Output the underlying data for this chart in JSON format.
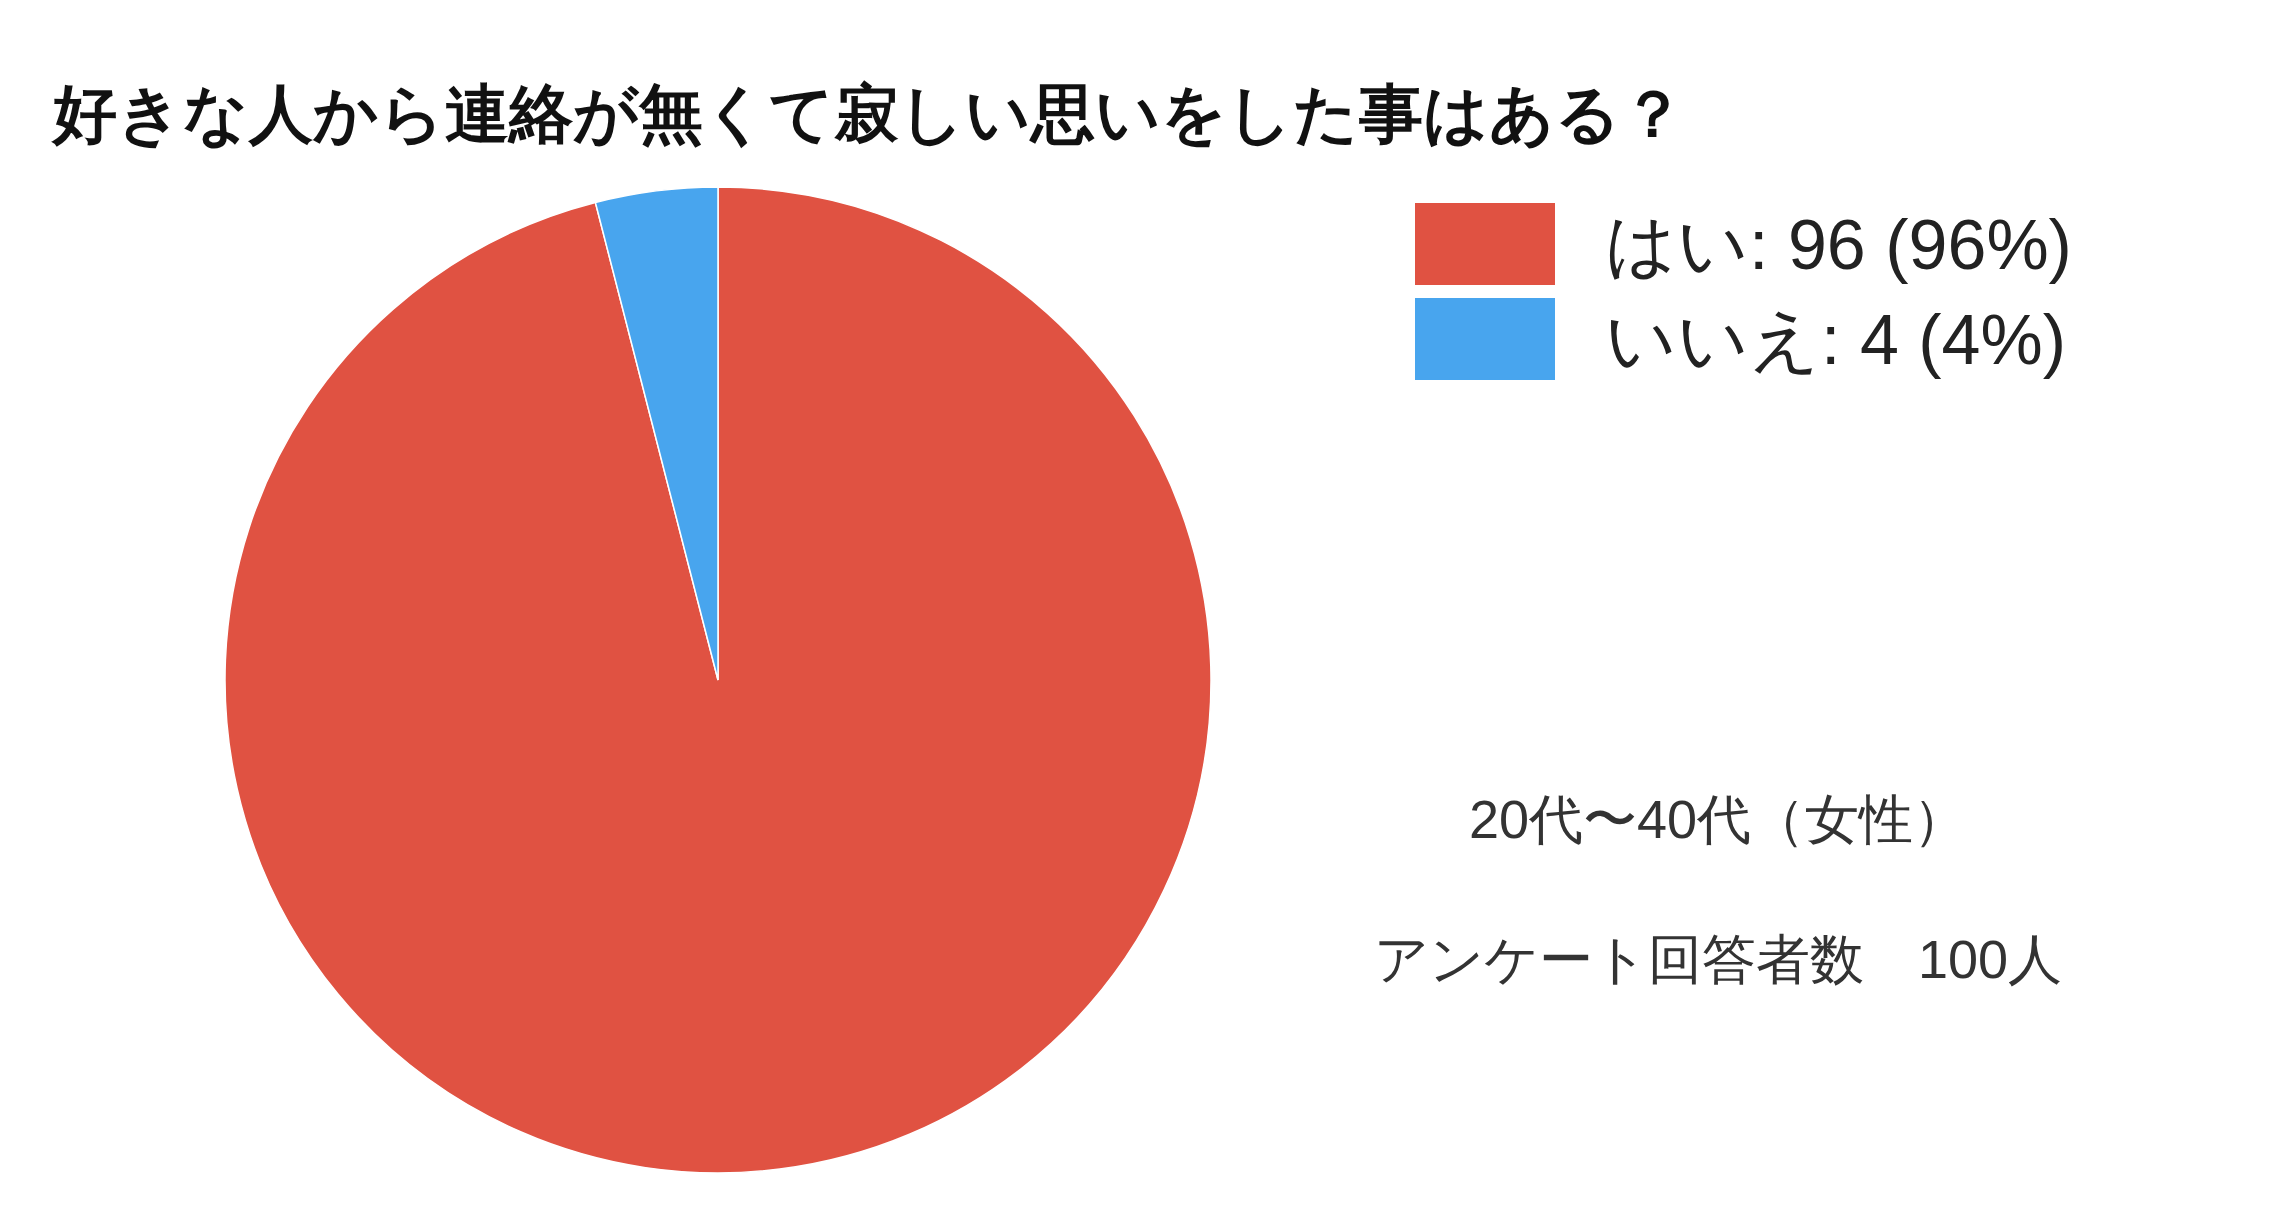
{
  "chart_data": {
    "type": "pie",
    "title": "好きな人から連絡が無くて寂しい思いをした事はある？",
    "categories": [
      "はい",
      "いいえ"
    ],
    "values": [
      96,
      4
    ],
    "colors": [
      "#e05242",
      "#48a5ee"
    ],
    "value_labels": [
      "96 (96%)",
      "4 (4%)"
    ],
    "legend": "top right",
    "annotations": [
      "20代〜40代（女性）",
      "アンケート回答者数　100人"
    ]
  }
}
